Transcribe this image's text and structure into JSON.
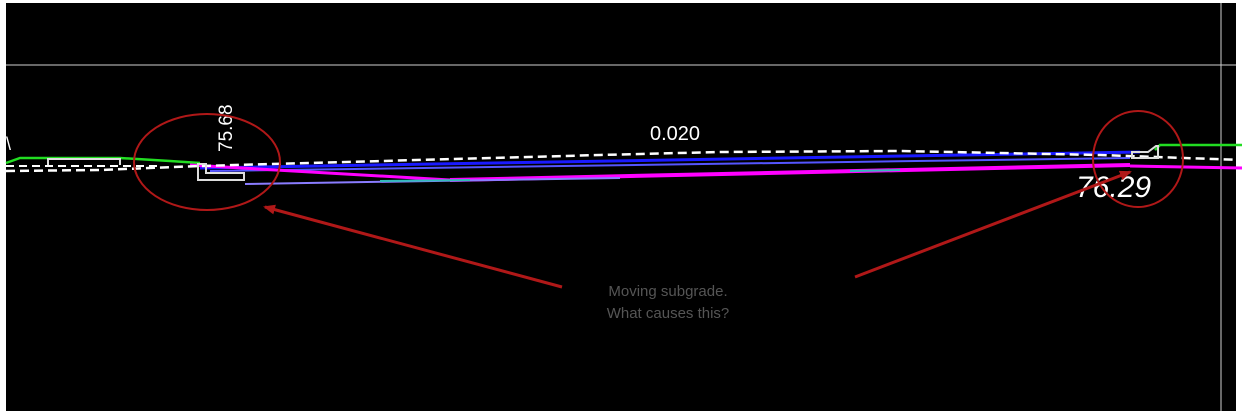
{
  "view": {
    "background_color": "#000000",
    "frame_color": "#ffffff",
    "guide_line_color": "#cfcfcf"
  },
  "labels": {
    "left_elevation": "75.68",
    "right_elevation": "76.29",
    "slope": "0.020",
    "edge_fragment": "\\",
    "callout_line1": "Moving subgrade.",
    "callout_line2": "What causes this?"
  },
  "colors": {
    "ground_line": "#22dd22",
    "design_dashed": "#ffffff",
    "subgrade_blue": "#1a1aff",
    "subgrade_magenta": "#ff00ff",
    "subgrade_purple": "#8a7cff",
    "subgrade_cyan": "#33bbbb",
    "annotation_red": "#b01818",
    "callout_text": "#555555"
  }
}
